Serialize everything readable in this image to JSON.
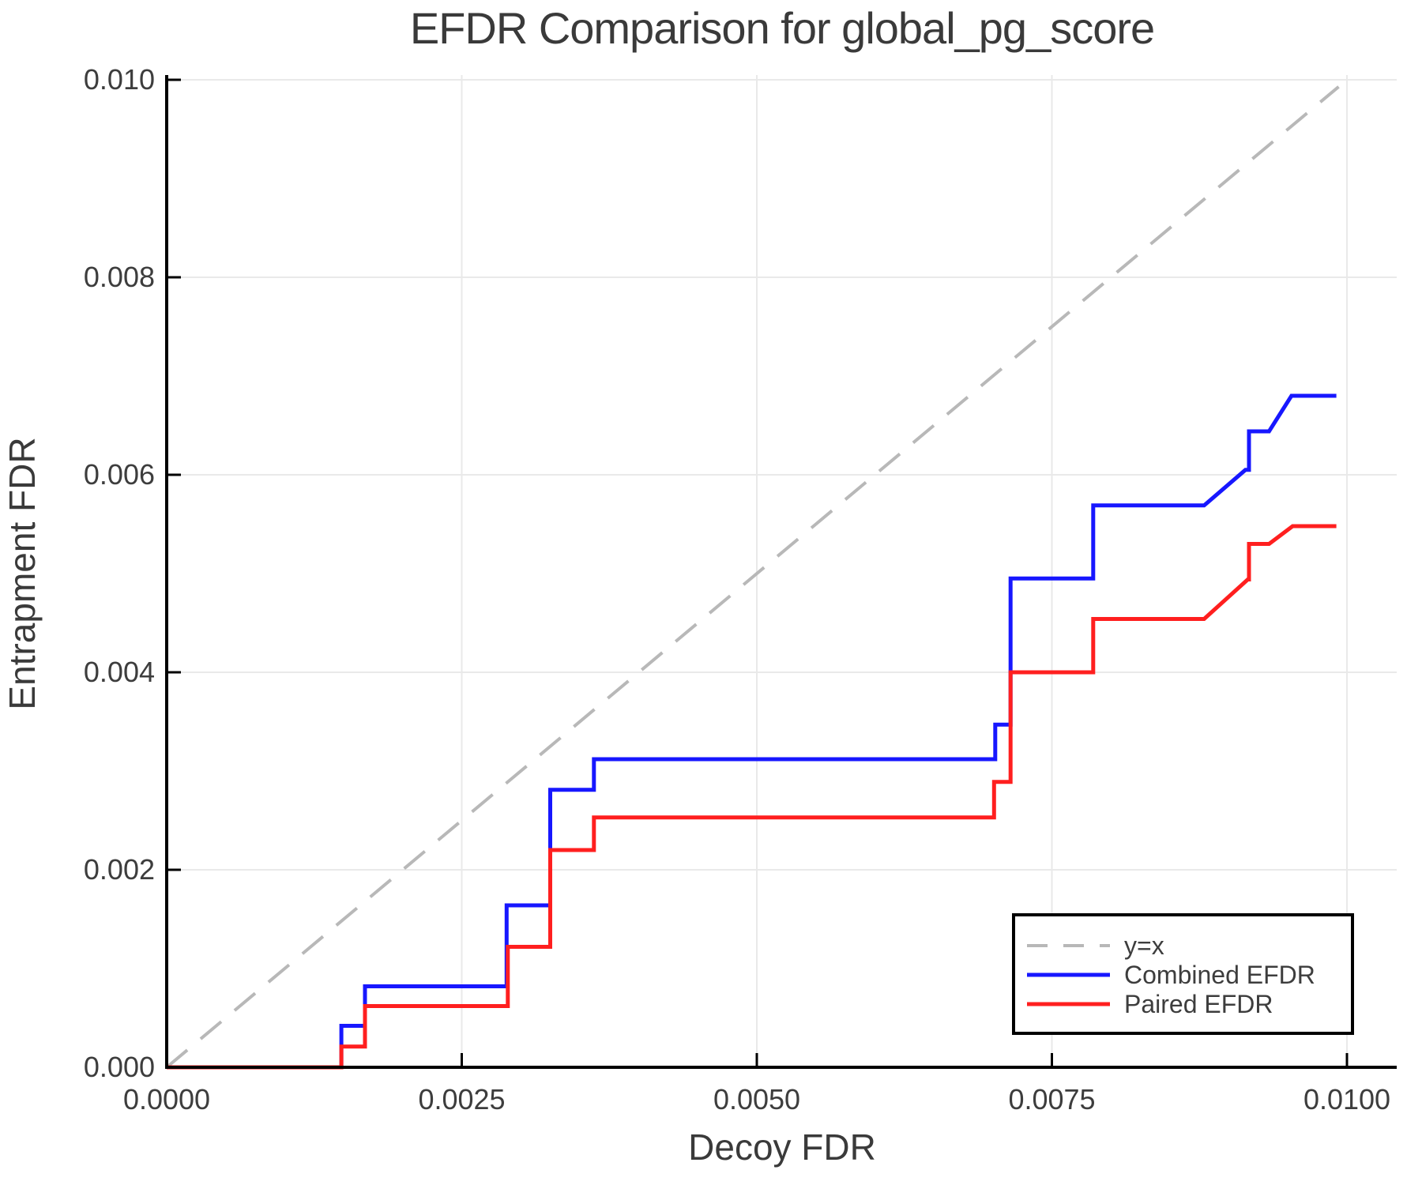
{
  "chart_data": {
    "type": "line",
    "subtype": "step",
    "title": "EFDR Comparison for global_pg_score",
    "xlabel": "Decoy FDR",
    "ylabel": "Entrapment FDR",
    "xlim": [
      0.0,
      0.01
    ],
    "ylim": [
      0.0,
      0.01
    ],
    "grid": true,
    "x_tick_values": [
      0.0,
      0.0025,
      0.005,
      0.0075,
      0.01
    ],
    "x_tick_labels": [
      "0.0000",
      "0.0025",
      "0.0050",
      "0.0075",
      "0.0100"
    ],
    "y_tick_values": [
      0.0,
      0.002,
      0.004,
      0.006,
      0.008,
      0.01
    ],
    "y_tick_labels": [
      "0.000",
      "0.002",
      "0.004",
      "0.006",
      "0.008",
      "0.010"
    ],
    "legend": {
      "position": "bottom-right",
      "border_color": "#000000",
      "background": "#ffffff"
    },
    "colors": {
      "identity_line": "#b8b8b8",
      "combined": "#1717ff",
      "paired": "#ff1f1f",
      "grid": "#e9e9e9",
      "axis": "#000000",
      "text": "#3a3a3a"
    },
    "series": [
      {
        "name": "y=x",
        "style": "dashed",
        "color": "#b8b8b8",
        "points": [
          [
            0.0,
            0.0
          ],
          [
            0.00993,
            0.00993
          ]
        ]
      },
      {
        "name": "Combined EFDR",
        "style": "solid",
        "color": "#1717ff",
        "points": [
          [
            0.0,
            0.0
          ],
          [
            0.00148,
            0.0
          ],
          [
            0.00148,
            0.00042
          ],
          [
            0.00168,
            0.00042
          ],
          [
            0.00168,
            0.00082
          ],
          [
            0.00288,
            0.00082
          ],
          [
            0.00288,
            0.00164
          ],
          [
            0.00325,
            0.00164
          ],
          [
            0.00325,
            0.00281
          ],
          [
            0.00362,
            0.00281
          ],
          [
            0.00362,
            0.00312
          ],
          [
            0.00702,
            0.00312
          ],
          [
            0.00702,
            0.00347
          ],
          [
            0.00715,
            0.00347
          ],
          [
            0.00715,
            0.00495
          ],
          [
            0.00785,
            0.00495
          ],
          [
            0.00785,
            0.00569
          ],
          [
            0.00879,
            0.00569
          ],
          [
            0.00914,
            0.00605
          ],
          [
            0.00917,
            0.00605
          ],
          [
            0.00917,
            0.00644
          ],
          [
            0.00934,
            0.00644
          ],
          [
            0.00953,
            0.0068
          ],
          [
            0.00991,
            0.0068
          ]
        ]
      },
      {
        "name": "Paired EFDR",
        "style": "solid",
        "color": "#ff1f1f",
        "points": [
          [
            0.0,
            0.0
          ],
          [
            0.00148,
            0.0
          ],
          [
            0.00148,
            0.00021
          ],
          [
            0.00168,
            0.00021
          ],
          [
            0.00168,
            0.00062
          ],
          [
            0.00289,
            0.00062
          ],
          [
            0.00289,
            0.00122
          ],
          [
            0.00325,
            0.00122
          ],
          [
            0.00325,
            0.0022
          ],
          [
            0.00362,
            0.0022
          ],
          [
            0.00362,
            0.00253
          ],
          [
            0.00701,
            0.00253
          ],
          [
            0.00701,
            0.00289
          ],
          [
            0.00715,
            0.00289
          ],
          [
            0.00715,
            0.004
          ],
          [
            0.00785,
            0.004
          ],
          [
            0.00785,
            0.00454
          ],
          [
            0.00879,
            0.00454
          ],
          [
            0.00916,
            0.00494
          ],
          [
            0.00917,
            0.00494
          ],
          [
            0.00917,
            0.0053
          ],
          [
            0.00934,
            0.0053
          ],
          [
            0.00954,
            0.00548
          ],
          [
            0.00991,
            0.00548
          ]
        ]
      }
    ]
  }
}
